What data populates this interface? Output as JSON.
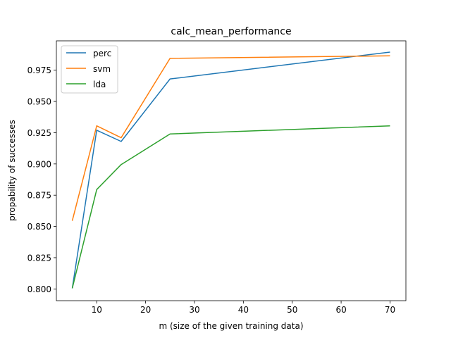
{
  "chart_data": {
    "type": "line",
    "title": "calc_mean_performance",
    "xlabel": "m (size of the given training data)",
    "ylabel": "propability of successes",
    "x": [
      5,
      10,
      15,
      25,
      70
    ],
    "xlim": [
      1.75,
      73.25
    ],
    "ylim": [
      0.7906,
      0.9985
    ],
    "xticks": [
      10,
      20,
      30,
      40,
      50,
      60,
      70
    ],
    "yticks": [
      0.8,
      0.825,
      0.85,
      0.875,
      0.9,
      0.925,
      0.95,
      0.975
    ],
    "ytick_labels": [
      "0.800",
      "0.825",
      "0.850",
      "0.875",
      "0.900",
      "0.925",
      "0.950",
      "0.975"
    ],
    "grid": false,
    "legend_position": "top-left",
    "series": [
      {
        "name": "perc",
        "color": "#1f77b4",
        "values": [
          0.8005,
          0.927,
          0.918,
          0.968,
          0.9895
        ]
      },
      {
        "name": "svm",
        "color": "#ff7f0e",
        "values": [
          0.8545,
          0.9305,
          0.921,
          0.9845,
          0.9865
        ]
      },
      {
        "name": "lda",
        "color": "#2ca02c",
        "values": [
          0.8005,
          0.8795,
          0.8995,
          0.924,
          0.9305
        ]
      }
    ]
  }
}
